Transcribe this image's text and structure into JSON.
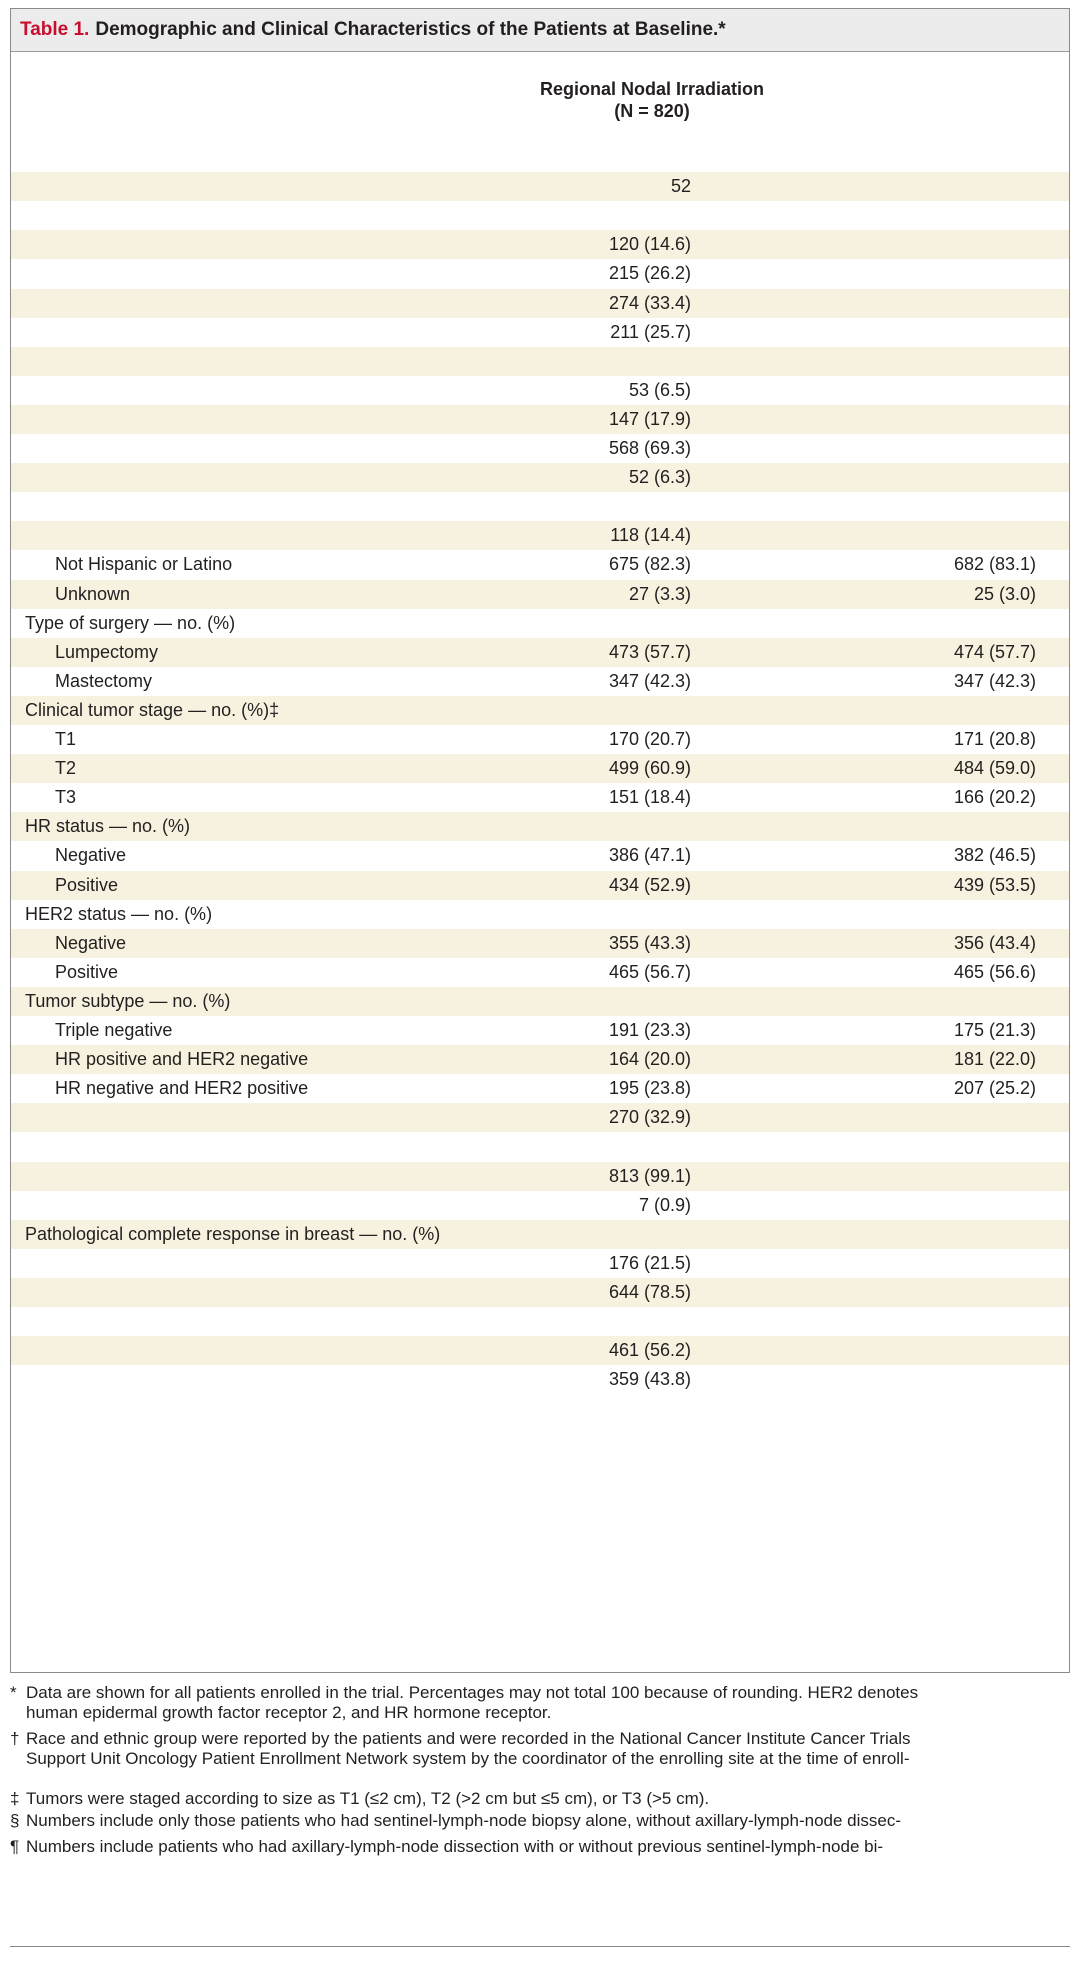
{
  "title": {
    "label": "Table 1.",
    "text": "Demographic and Clinical Characteristics of the Patients at Baseline.*"
  },
  "column_header": {
    "line1": "Regional Nodal Irradiation",
    "line2": "(N = 820)"
  },
  "rows": [
    {
      "label": "",
      "v1": "",
      "v2": "",
      "type": "group",
      "shade": false
    },
    {
      "label": "",
      "v1": "52",
      "v2": "",
      "type": "group",
      "shade": true
    },
    {
      "label": "",
      "v1": "",
      "v2": "",
      "type": "group",
      "shade": false
    },
    {
      "label": "",
      "v1": "120 (14.6)",
      "v2": "",
      "type": "sub",
      "shade": true
    },
    {
      "label": "",
      "v1": "215 (26.2)",
      "v2": "",
      "type": "sub",
      "shade": false
    },
    {
      "label": "",
      "v1": "274 (33.4)",
      "v2": "",
      "type": "sub",
      "shade": true
    },
    {
      "label": "",
      "v1": "211 (25.7)",
      "v2": "",
      "type": "sub",
      "shade": false
    },
    {
      "label": "",
      "v1": "",
      "v2": "",
      "type": "group",
      "shade": true
    },
    {
      "label": "",
      "v1": "53 (6.5)",
      "v2": "",
      "type": "sub",
      "shade": false
    },
    {
      "label": "",
      "v1": "147 (17.9)",
      "v2": "",
      "type": "sub",
      "shade": true
    },
    {
      "label": "",
      "v1": "568 (69.3)",
      "v2": "",
      "type": "sub",
      "shade": false
    },
    {
      "label": "",
      "v1": "52 (6.3)",
      "v2": "",
      "type": "sub",
      "shade": true
    },
    {
      "label": "",
      "v1": "",
      "v2": "",
      "type": "group",
      "shade": false
    },
    {
      "label": "",
      "v1": "118 (14.4)",
      "v2": "",
      "type": "sub",
      "shade": true
    },
    {
      "label": "Not Hispanic or Latino",
      "v1": "675 (82.3)",
      "v2": "682 (83.1)",
      "type": "sub",
      "shade": false
    },
    {
      "label": "Unknown",
      "v1": "27 (3.3)",
      "v2": "25 (3.0)",
      "type": "sub",
      "shade": true
    },
    {
      "label": "Type of surgery — no. (%)",
      "v1": "",
      "v2": "",
      "type": "group",
      "shade": false
    },
    {
      "label": "Lumpectomy",
      "v1": "473 (57.7)",
      "v2": "474 (57.7)",
      "type": "sub",
      "shade": true
    },
    {
      "label": "Mastectomy",
      "v1": "347 (42.3)",
      "v2": "347 (42.3)",
      "type": "sub",
      "shade": false
    },
    {
      "label": "Clinical tumor stage — no. (%)‡",
      "v1": "",
      "v2": "",
      "type": "group",
      "shade": true
    },
    {
      "label": "T1",
      "v1": "170 (20.7)",
      "v2": "171 (20.8)",
      "type": "sub",
      "shade": false
    },
    {
      "label": "T2",
      "v1": "499 (60.9)",
      "v2": "484 (59.0)",
      "type": "sub",
      "shade": true
    },
    {
      "label": "T3",
      "v1": "151 (18.4)",
      "v2": "166 (20.2)",
      "type": "sub",
      "shade": false
    },
    {
      "label": "HR status — no. (%)",
      "v1": "",
      "v2": "",
      "type": "group",
      "shade": true
    },
    {
      "label": "Negative",
      "v1": "386 (47.1)",
      "v2": "382 (46.5)",
      "type": "sub",
      "shade": false
    },
    {
      "label": "Positive",
      "v1": "434 (52.9)",
      "v2": "439 (53.5)",
      "type": "sub",
      "shade": true
    },
    {
      "label": "HER2 status — no. (%)",
      "v1": "",
      "v2": "",
      "type": "group",
      "shade": false
    },
    {
      "label": "Negative",
      "v1": "355 (43.3)",
      "v2": "356 (43.4)",
      "type": "sub",
      "shade": true
    },
    {
      "label": "Positive",
      "v1": "465 (56.7)",
      "v2": "465 (56.6)",
      "type": "sub",
      "shade": false
    },
    {
      "label": "Tumor subtype — no. (%)",
      "v1": "",
      "v2": "",
      "type": "group",
      "shade": true
    },
    {
      "label": "Triple negative",
      "v1": "191 (23.3)",
      "v2": "175 (21.3)",
      "type": "sub",
      "shade": false
    },
    {
      "label": "HR positive and HER2 negative",
      "v1": "164 (20.0)",
      "v2": "181 (22.0)",
      "type": "sub",
      "shade": true
    },
    {
      "label": "HR negative and HER2 positive",
      "v1": "195 (23.8)",
      "v2": "207 (25.2)",
      "type": "sub",
      "shade": false
    },
    {
      "label": "",
      "v1": "270 (32.9)",
      "v2": "",
      "type": "sub",
      "shade": true
    },
    {
      "label": "",
      "v1": "",
      "v2": "",
      "type": "group",
      "shade": false
    },
    {
      "label": "",
      "v1": "813 (99.1)",
      "v2": "",
      "type": "sub",
      "shade": true
    },
    {
      "label": "",
      "v1": "7 (0.9)",
      "v2": "",
      "type": "sub",
      "shade": false
    },
    {
      "label": "Pathological complete response in breast — no. (%)",
      "v1": "",
      "v2": "",
      "type": "group",
      "shade": true
    },
    {
      "label": "",
      "v1": "176 (21.5)",
      "v2": "",
      "type": "sub",
      "shade": false
    },
    {
      "label": "",
      "v1": "644 (78.5)",
      "v2": "",
      "type": "sub",
      "shade": true
    },
    {
      "label": "",
      "v1": "",
      "v2": "",
      "type": "group",
      "shade": false
    },
    {
      "label": "",
      "v1": "461 (56.2)",
      "v2": "",
      "type": "sub",
      "shade": true
    },
    {
      "label": "",
      "v1": "359 (43.8)",
      "v2": "",
      "type": "sub",
      "shade": false
    }
  ],
  "footnotes": [
    {
      "mark": "*",
      "text": "Data are shown for all patients enrolled in the trial. Percentages may not total 100 because of rounding. HER2 denotes"
    },
    {
      "mark": "",
      "text": "human epidermal growth factor receptor 2, and HR hormone receptor."
    },
    {
      "mark": "†",
      "text": "Race and ethnic group were reported by the patients and were recorded in the National Cancer Institute Cancer Trials"
    },
    {
      "mark": "",
      "text": "Support Unit Oncology Patient Enrollment Network system by the coordinator of the enrolling site at the time of enroll-"
    },
    {
      "mark": "‡",
      "text": "Tumors were staged according to size as T1 (≤2 cm), T2 (>2 cm but ≤5 cm), or T3 (>5 cm)."
    },
    {
      "mark": "§",
      "text": "Numbers include only those patients who had sentinel-lymph-node biopsy alone, without axillary-lymph-node dissec-"
    },
    {
      "mark": "¶",
      "text": "Numbers include patients who had axillary-lymph-node dissection with or without previous sentinel-lymph-node bi-"
    }
  ]
}
